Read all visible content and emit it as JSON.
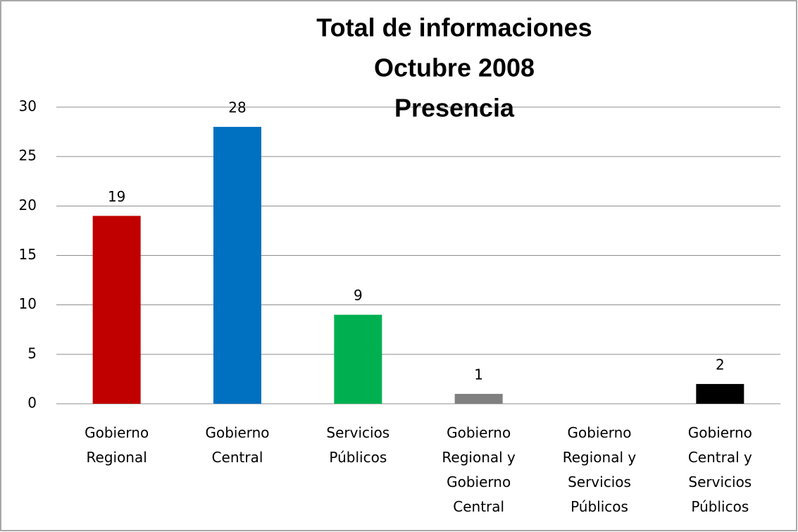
{
  "chart_data": {
    "type": "bar",
    "title": [
      "Total de informaciones",
      "Octubre 2008",
      "Presencia"
    ],
    "categories": [
      "Gobierno Regional",
      "Gobierno Central",
      "Servicios Públicos",
      "Gobierno Regional y Gobierno Central",
      "Gobierno Regional y Servicios Públicos",
      "Gobierno Central y Servicios Públicos"
    ],
    "values": [
      19,
      28,
      9,
      1,
      null,
      2
    ],
    "colors": [
      "#c00000",
      "#0070c0",
      "#00b050",
      "#808080",
      "#808080",
      "#000000"
    ],
    "ylim": [
      0,
      30
    ],
    "yticks": [
      0,
      5,
      10,
      15,
      20,
      25,
      30
    ],
    "grid": true
  }
}
